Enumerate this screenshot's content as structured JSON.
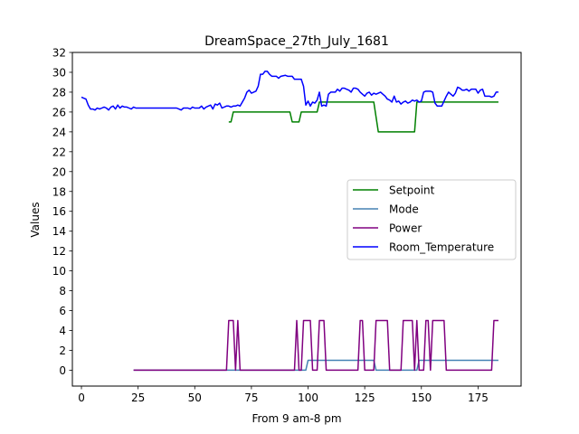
{
  "chart_data": {
    "type": "line",
    "title": "DreamSpace_27th_July_1681",
    "xlabel": "From 9 am-8 pm",
    "ylabel": "Values",
    "xlim": [
      -4,
      194
    ],
    "ylim": [
      -1.6,
      32
    ],
    "xticks": [
      0,
      25,
      50,
      75,
      100,
      125,
      150,
      175
    ],
    "yticks": [
      0,
      2,
      4,
      6,
      8,
      10,
      12,
      14,
      16,
      18,
      20,
      22,
      24,
      26,
      28,
      30,
      32
    ],
    "grid": false,
    "legend_position": "center-right",
    "series": [
      {
        "name": "Setpoint",
        "color": "#008000",
        "points": [
          [
            65,
            25
          ],
          [
            66,
            25
          ],
          [
            67,
            26
          ],
          [
            92,
            26
          ],
          [
            93,
            25
          ],
          [
            96,
            25
          ],
          [
            97,
            26
          ],
          [
            104,
            26
          ],
          [
            105,
            27
          ],
          [
            129,
            27
          ],
          [
            131,
            24
          ],
          [
            147,
            24
          ],
          [
            148,
            27
          ],
          [
            184,
            27
          ]
        ]
      },
      {
        "name": "Mode",
        "color": "#4682b4",
        "points": [
          [
            23,
            0
          ],
          [
            99,
            0
          ],
          [
            100,
            1
          ],
          [
            129,
            1
          ],
          [
            130,
            0
          ],
          [
            148,
            0
          ],
          [
            149,
            1
          ],
          [
            184,
            1
          ]
        ]
      },
      {
        "name": "Power",
        "color": "#800080",
        "points": [
          [
            23,
            0
          ],
          [
            64,
            0
          ],
          [
            65,
            5
          ],
          [
            67,
            5
          ],
          [
            68,
            0
          ],
          [
            69,
            5
          ],
          [
            70,
            0
          ],
          [
            94,
            0
          ],
          [
            95,
            5
          ],
          [
            96,
            0
          ],
          [
            97,
            0
          ],
          [
            98,
            5
          ],
          [
            101,
            5
          ],
          [
            102,
            0
          ],
          [
            104,
            0
          ],
          [
            105,
            5
          ],
          [
            107,
            5
          ],
          [
            108,
            0
          ],
          [
            122,
            0
          ],
          [
            123,
            5
          ],
          [
            124,
            5
          ],
          [
            125,
            0
          ],
          [
            129,
            0
          ],
          [
            130,
            5
          ],
          [
            135,
            5
          ],
          [
            136,
            0
          ],
          [
            141,
            0
          ],
          [
            142,
            5
          ],
          [
            146,
            5
          ],
          [
            147,
            0
          ],
          [
            148,
            5
          ],
          [
            149,
            0
          ],
          [
            151,
            0
          ],
          [
            152,
            5
          ],
          [
            153,
            5
          ],
          [
            154,
            0
          ],
          [
            155,
            5
          ],
          [
            160,
            5
          ],
          [
            161,
            0
          ],
          [
            181,
            0
          ],
          [
            182,
            5
          ],
          [
            184,
            5
          ]
        ]
      },
      {
        "name": "Room_Temperature",
        "color": "#0000ff",
        "points": [
          [
            0,
            27.5
          ],
          [
            1,
            27.4
          ],
          [
            2,
            27.3
          ],
          [
            3,
            26.7
          ],
          [
            4,
            26.3
          ],
          [
            5,
            26.3
          ],
          [
            6,
            26.2
          ],
          [
            7,
            26.4
          ],
          [
            8,
            26.3
          ],
          [
            9,
            26.4
          ],
          [
            10,
            26.5
          ],
          [
            11,
            26.4
          ],
          [
            12,
            26.2
          ],
          [
            13,
            26.5
          ],
          [
            14,
            26.6
          ],
          [
            15,
            26.3
          ],
          [
            16,
            26.7
          ],
          [
            17,
            26.4
          ],
          [
            18,
            26.6
          ],
          [
            19,
            26.5
          ],
          [
            20,
            26.5
          ],
          [
            21,
            26.4
          ],
          [
            22,
            26.3
          ],
          [
            23,
            26.5
          ],
          [
            24,
            26.4
          ],
          [
            25,
            26.4
          ],
          [
            30,
            26.4
          ],
          [
            35,
            26.4
          ],
          [
            40,
            26.4
          ],
          [
            42,
            26.4
          ],
          [
            43,
            26.3
          ],
          [
            44,
            26.2
          ],
          [
            45,
            26.4
          ],
          [
            47,
            26.4
          ],
          [
            48,
            26.3
          ],
          [
            49,
            26.5
          ],
          [
            50,
            26.4
          ],
          [
            52,
            26.4
          ],
          [
            53,
            26.6
          ],
          [
            54,
            26.3
          ],
          [
            55,
            26.5
          ],
          [
            57,
            26.7
          ],
          [
            58,
            26.3
          ],
          [
            59,
            26.8
          ],
          [
            60,
            26.7
          ],
          [
            61,
            26.9
          ],
          [
            62,
            26.4
          ],
          [
            64,
            26.6
          ],
          [
            65,
            26.6
          ],
          [
            66,
            26.5
          ],
          [
            67,
            26.6
          ],
          [
            68,
            26.6
          ],
          [
            69,
            26.7
          ],
          [
            70,
            26.6
          ],
          [
            71,
            27.0
          ],
          [
            72,
            27.4
          ],
          [
            73,
            28.0
          ],
          [
            74,
            28.2
          ],
          [
            75,
            27.9
          ],
          [
            76,
            28.0
          ],
          [
            77,
            28.1
          ],
          [
            78,
            28.6
          ],
          [
            79,
            29.8
          ],
          [
            80,
            29.8
          ],
          [
            81,
            30.1
          ],
          [
            82,
            30.1
          ],
          [
            83,
            29.8
          ],
          [
            84,
            29.6
          ],
          [
            85,
            29.6
          ],
          [
            86,
            29.6
          ],
          [
            87,
            29.4
          ],
          [
            88,
            29.6
          ],
          [
            90,
            29.7
          ],
          [
            91,
            29.6
          ],
          [
            93,
            29.6
          ],
          [
            94,
            29.3
          ],
          [
            95,
            29.3
          ],
          [
            97,
            29.3
          ],
          [
            98,
            28.6
          ],
          [
            99,
            26.7
          ],
          [
            100,
            27.1
          ],
          [
            101,
            26.6
          ],
          [
            102,
            27.0
          ],
          [
            103,
            26.9
          ],
          [
            104,
            27.2
          ],
          [
            105,
            28.0
          ],
          [
            106,
            26.6
          ],
          [
            107,
            26.7
          ],
          [
            108,
            26.6
          ],
          [
            109,
            27.8
          ],
          [
            110,
            28.0
          ],
          [
            111,
            28.0
          ],
          [
            112,
            28.0
          ],
          [
            113,
            28.3
          ],
          [
            114,
            28.1
          ],
          [
            115,
            28.4
          ],
          [
            116,
            28.4
          ],
          [
            117,
            28.3
          ],
          [
            118,
            28.2
          ],
          [
            119,
            28.0
          ],
          [
            120,
            28.4
          ],
          [
            121,
            28.4
          ],
          [
            122,
            28.3
          ],
          [
            123,
            28.0
          ],
          [
            124,
            27.8
          ],
          [
            125,
            27.6
          ],
          [
            126,
            27.9
          ],
          [
            127,
            28.0
          ],
          [
            128,
            27.7
          ],
          [
            129,
            27.9
          ],
          [
            130,
            27.8
          ],
          [
            131,
            27.9
          ],
          [
            132,
            28.0
          ],
          [
            133,
            27.8
          ],
          [
            134,
            27.6
          ],
          [
            135,
            27.3
          ],
          [
            136,
            27.2
          ],
          [
            137,
            27.0
          ],
          [
            138,
            27.6
          ],
          [
            139,
            27.0
          ],
          [
            140,
            27.1
          ],
          [
            141,
            26.8
          ],
          [
            142,
            27.0
          ],
          [
            143,
            27.1
          ],
          [
            144,
            26.9
          ],
          [
            145,
            27.0
          ],
          [
            146,
            27.2
          ],
          [
            147,
            27.1
          ],
          [
            148,
            27.2
          ],
          [
            149,
            27.0
          ],
          [
            150,
            27.1
          ],
          [
            151,
            28.0
          ],
          [
            152,
            28.1
          ],
          [
            153,
            28.1
          ],
          [
            154,
            28.1
          ],
          [
            155,
            28.0
          ],
          [
            156,
            26.9
          ],
          [
            157,
            26.6
          ],
          [
            158,
            26.6
          ],
          [
            159,
            26.6
          ],
          [
            160,
            27.1
          ],
          [
            161,
            27.6
          ],
          [
            162,
            28.0
          ],
          [
            163,
            27.8
          ],
          [
            164,
            27.6
          ],
          [
            165,
            27.9
          ],
          [
            166,
            28.5
          ],
          [
            167,
            28.4
          ],
          [
            168,
            28.2
          ],
          [
            169,
            28.2
          ],
          [
            170,
            28.3
          ],
          [
            171,
            28.1
          ],
          [
            172,
            28.3
          ],
          [
            173,
            28.3
          ],
          [
            174,
            28.3
          ],
          [
            175,
            27.9
          ],
          [
            176,
            28.2
          ],
          [
            177,
            28.3
          ],
          [
            178,
            27.6
          ],
          [
            179,
            27.6
          ],
          [
            180,
            27.6
          ],
          [
            181,
            27.5
          ],
          [
            182,
            27.6
          ],
          [
            183,
            28.0
          ],
          [
            184,
            28.0
          ]
        ]
      }
    ]
  }
}
